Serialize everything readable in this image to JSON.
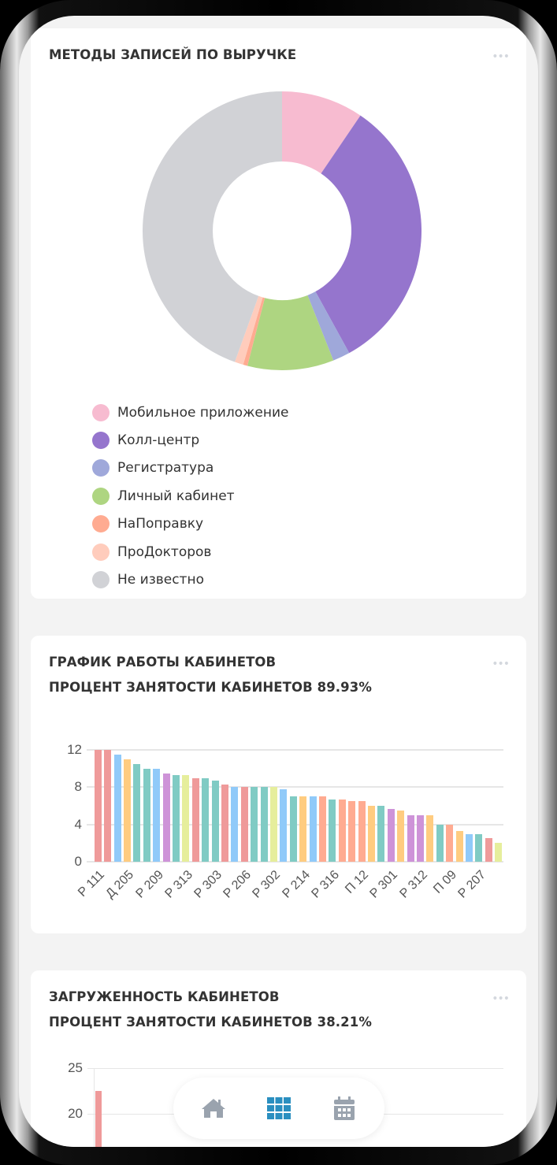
{
  "cards": [
    {
      "title": "МЕТОДЫ ЗАПИСЕЙ ПО ВЫРУЧКЕ",
      "menu_label": "•••"
    },
    {
      "title": "ГРАФИК РАБОТЫ КАБИНЕТОВ",
      "subtitle": "ПРОЦЕНТ ЗАНЯТОСТИ КАБИНЕТОВ 89.93%",
      "menu_label": "•••"
    },
    {
      "title": "ЗАГРУЖЕННОСТЬ КАБИНЕТОВ",
      "subtitle": "ПРОЦЕНТ ЗАНЯТОСТИ КАБИНЕТОВ 38.21%",
      "menu_label": "•••"
    }
  ],
  "nav": {
    "items": [
      {
        "icon": "home-icon",
        "color": "#9aa3ae",
        "active": false
      },
      {
        "icon": "grid-icon",
        "color": "#2a8fc0",
        "active": true
      },
      {
        "icon": "calendar-icon",
        "color": "#9aa3ae",
        "active": false
      }
    ]
  },
  "chart_data": [
    {
      "type": "pie",
      "variant": "doughnut",
      "title": "МЕТОДЫ ЗАПИСЕЙ ПО ВЫРУЧКЕ",
      "categories": [
        "Мобильное приложение",
        "Колл-центр",
        "Регистратура",
        "Личный кабинет",
        "НаПоправку",
        "ПроДокторов",
        "Не известно"
      ],
      "values": [
        9.5,
        32.5,
        2.0,
        10.0,
        0.5,
        1.0,
        44.5
      ],
      "colors": [
        "#f7bbd0",
        "#9575cd",
        "#9fa8da",
        "#aed581",
        "#ffab91",
        "#ffccbc",
        "#d1d2d6"
      ],
      "legend_position": "bottom"
    },
    {
      "type": "bar",
      "title": "ГРАФИК РАБОТЫ КАБИНЕТОВ",
      "subtitle": "ПРОЦЕНТ ЗАНЯТОСТИ КАБИНЕТОВ 89.93%",
      "tick_labels": [
        "Р 111",
        "Д 205",
        "Р 209",
        "Р 313",
        "Р 303",
        "Р 206",
        "Р 302",
        "Р 214",
        "Р 316",
        "П 12",
        "Р 301",
        "Р 312",
        "П 09",
        "Р 207"
      ],
      "tick_every": 3,
      "values": [
        12,
        12,
        11.5,
        11,
        10.5,
        10,
        10,
        9.5,
        9.3,
        9.3,
        9,
        9,
        8.7,
        8.3,
        8,
        8,
        8,
        8,
        8,
        7.8,
        7,
        7,
        7,
        7,
        6.7,
        6.7,
        6.5,
        6.5,
        6,
        6,
        5.7,
        5.5,
        5,
        5,
        5,
        4,
        4,
        3.3,
        3,
        3,
        2.5,
        2
      ],
      "colors": [
        "#ef9a9a",
        "#ef9a9a",
        "#90caf9",
        "#ffcc80",
        "#80cbc4",
        "#80cbc4",
        "#90caf9",
        "#ce93d8",
        "#80cbc4",
        "#e6ee9c",
        "#ef9a9a",
        "#80cbc4",
        "#80cbc4",
        "#ef9a9a",
        "#90caf9",
        "#ef9a9a",
        "#80cbc4",
        "#80cbc4",
        "#e6ee9c",
        "#90caf9",
        "#80cbc4",
        "#ffcc80",
        "#90caf9",
        "#ffab91",
        "#80cbc4",
        "#ffab91",
        "#ffab91",
        "#ffab91",
        "#ffcc80",
        "#80cbc4",
        "#ce93d8",
        "#ffcc80",
        "#ce93d8",
        "#ce93d8",
        "#ffcc80",
        "#80cbc4",
        "#ffab91",
        "#ffcc80",
        "#90caf9",
        "#80cbc4",
        "#ef9a9a",
        "#e6ee9c"
      ],
      "yticks": [
        0,
        4,
        8,
        12
      ],
      "ylim": [
        0,
        12
      ],
      "grid": true
    },
    {
      "type": "bar",
      "title": "ЗАГРУЖЕННОСТЬ КАБИНЕТОВ",
      "subtitle": "ПРОЦЕНТ ЗАНЯТОСТИ КАБИНЕТОВ 38.21%",
      "yticks_visible": [
        20,
        25
      ],
      "values_visible": [
        22.5
      ],
      "colors": [
        "#ef9a9a"
      ],
      "grid": true
    }
  ]
}
